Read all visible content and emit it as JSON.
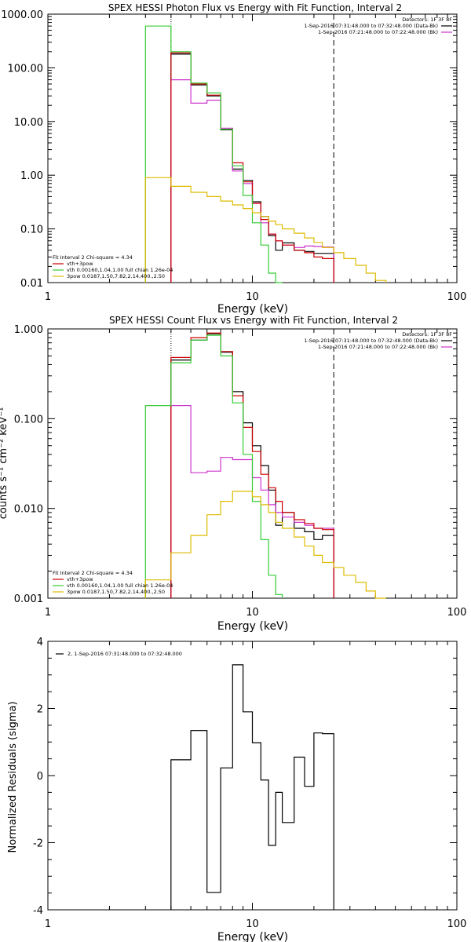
{
  "chart_data": [
    {
      "type": "line",
      "step": true,
      "title": "SPEX HESSI Photon Flux vs Energy with Fit Function, Interval 2",
      "xlabel": "Energy (keV)",
      "ylabel": "",
      "xscale": "log",
      "yscale": "log",
      "xlim": [
        1,
        100
      ],
      "ylim": [
        0.01,
        1000
      ],
      "xticks": [
        "1",
        "10",
        "100"
      ],
      "yticks": [
        "0.01",
        "0.10",
        "1.00",
        "10.00",
        "100.00",
        "1000.00"
      ],
      "vlines": [
        {
          "x": 4.0,
          "style": "dotted"
        },
        {
          "x": 25.0,
          "style": "dashed"
        }
      ],
      "detectors_label": "Detectors: 1F 3F 8F",
      "legend_top_right": [
        {
          "text": "1-Sep-2016 07:31:48.000 to 07:32:48.000 (Data-Bk)",
          "color": "#000000"
        },
        {
          "text": "1-Sep-2016 07:21:48.000 to 07:22:48.000 (Bk)",
          "color": "#cc33cc"
        }
      ],
      "legend_bottom_left": [
        {
          "text": "Fit Interval 2   Chi-square = 4.34",
          "color": null
        },
        {
          "text": "vth+3pow",
          "color": "#cc0000"
        },
        {
          "text": "vth 0.00160,1.04,1.00  full chian 1.26e-04",
          "color": "#33cc33"
        },
        {
          "text": "3pow 0.0187,1.50,7.82,2.14,400.,2.50",
          "color": "#ddbb00"
        }
      ],
      "edges": [
        3.0,
        4.0,
        5.0,
        6.0,
        7.0,
        8.0,
        9.0,
        10.0,
        11.0,
        12.0,
        13.0,
        14.0,
        16.0,
        18.0,
        20.0,
        22.0,
        25.0,
        28.0,
        32.0,
        36.0,
        40.0,
        45.0
      ],
      "series": [
        {
          "name": "Data-Bk",
          "color": "#000000",
          "start": 1,
          "values": [
            180,
            48,
            30,
            7,
            1.3,
            0.8,
            0.32,
            0.17,
            0.075,
            0.04,
            0.055,
            0.04,
            0.038,
            0.035,
            0.035
          ]
        },
        {
          "name": "Bk",
          "color": "#cc33cc",
          "start": 1,
          "values": [
            60,
            22,
            25,
            7.5,
            1.2,
            0.7,
            0.3,
            0.13,
            0.08,
            0.06,
            0.05,
            0.045,
            0.048,
            0.047,
            0.046
          ]
        },
        {
          "name": "vth+3pow",
          "color": "#cc0000",
          "start": 1,
          "values": [
            190,
            50,
            31,
            7.2,
            1.7,
            0.75,
            0.3,
            0.15,
            0.08,
            0.06,
            0.05,
            0.04,
            0.036,
            0.03,
            0.028
          ]
        },
        {
          "name": "vth",
          "color": "#33cc33",
          "start": 0,
          "values": [
            600,
            200,
            52,
            34,
            7.2,
            1.5,
            0.42,
            0.13,
            0.05,
            0.015,
            0.01
          ]
        },
        {
          "name": "3pow",
          "color": "#ddbb00",
          "start": 0,
          "values": [
            0.9,
            0.62,
            0.48,
            0.4,
            0.33,
            0.28,
            0.24,
            0.2,
            0.17,
            0.14,
            0.12,
            0.1,
            0.083,
            0.068,
            0.056,
            0.045,
            0.036,
            0.028,
            0.021,
            0.015,
            0.011
          ]
        }
      ]
    },
    {
      "type": "line",
      "step": true,
      "title": "SPEX HESSI Count Flux vs Energy with Fit Function, Interval 2",
      "xlabel": "Energy (keV)",
      "ylabel": "counts s⁻¹ cm⁻² keV⁻¹",
      "xscale": "log",
      "yscale": "log",
      "xlim": [
        1,
        100
      ],
      "ylim": [
        0.001,
        1
      ],
      "xticks": [
        "1",
        "10",
        "100"
      ],
      "yticks": [
        "0.001",
        "0.010",
        "0.100",
        "1.000"
      ],
      "vlines": [
        {
          "x": 4.0,
          "style": "dotted"
        },
        {
          "x": 25.0,
          "style": "dashed"
        }
      ],
      "detectors_label": "Detectors: 1F 3F 8F",
      "legend_top_right": [
        {
          "text": "1-Sep-2016 07:31:48.000 to 07:32:48.000 (Data-Bk)",
          "color": "#000000"
        },
        {
          "text": "1-Sep-2016 07:21:48.000 to 07:22:48.000 (Bk)",
          "color": "#cc33cc"
        }
      ],
      "legend_bottom_left": [
        {
          "text": "Fit Interval 2   Chi-square = 4.34",
          "color": null
        },
        {
          "text": "vth+3pow",
          "color": "#cc0000"
        },
        {
          "text": "vth 0.00160,1.04,1.00  full chian 1.26e-04",
          "color": "#33cc33"
        },
        {
          "text": "3pow 0.0187,1.50,7.82,2.14,400.,2.50",
          "color": "#ddbb00"
        }
      ],
      "edges": [
        3.0,
        4.0,
        5.0,
        6.0,
        7.0,
        8.0,
        9.0,
        10.0,
        11.0,
        12.0,
        13.0,
        14.0,
        16.0,
        18.0,
        20.0,
        22.0,
        25.0,
        28.0,
        32.0,
        36.0,
        40.0,
        45.0
      ],
      "series": [
        {
          "name": "Data-Bk",
          "color": "#000000",
          "start": 1,
          "values": [
            0.45,
            0.75,
            0.88,
            0.55,
            0.2,
            0.09,
            0.05,
            0.03,
            0.016,
            0.0065,
            0.009,
            0.006,
            0.0055,
            0.0045,
            0.005
          ]
        },
        {
          "name": "Bk",
          "color": "#cc33cc",
          "start": 1,
          "values": [
            0.14,
            0.025,
            0.026,
            0.037,
            0.035,
            0.035,
            0.022,
            0.016,
            0.011,
            0.009,
            0.008,
            0.007,
            0.0065,
            0.006,
            0.006
          ]
        },
        {
          "name": "vth+3pow",
          "color": "#cc0000",
          "start": 1,
          "values": [
            0.48,
            0.8,
            0.9,
            0.56,
            0.18,
            0.08,
            0.043,
            0.024,
            0.017,
            0.012,
            0.009,
            0.0075,
            0.0068,
            0.006,
            0.0058
          ]
        },
        {
          "name": "vth",
          "color": "#33cc33",
          "start": 0,
          "values": [
            0.14,
            0.42,
            0.75,
            0.85,
            0.5,
            0.15,
            0.04,
            0.012,
            0.0045,
            0.0018,
            0.0011
          ]
        },
        {
          "name": "3pow",
          "color": "#ddbb00",
          "start": 0,
          "values": [
            0.0016,
            0.0032,
            0.005,
            0.0085,
            0.012,
            0.0155,
            0.0155,
            0.0135,
            0.011,
            0.009,
            0.007,
            0.006,
            0.0048,
            0.0038,
            0.003,
            0.0025,
            0.0022,
            0.0018,
            0.0015,
            0.0012,
            0.001
          ]
        }
      ]
    },
    {
      "type": "line",
      "step": true,
      "title": "",
      "xlabel": "Energy (keV)",
      "ylabel": "Normalized Residuals (sigma)",
      "xscale": "log",
      "yscale": "linear",
      "xlim": [
        1,
        100
      ],
      "ylim": [
        -4,
        4
      ],
      "xticks": [
        "1",
        "10",
        "100"
      ],
      "yticks": [
        "-4",
        "-2",
        "0",
        "2",
        "4"
      ],
      "legend": [
        {
          "text": "2, 1-Sep-2016 07:31:48.000 to 07:32:48.000",
          "color": "#000000"
        }
      ],
      "edges": [
        4.0,
        5.0,
        6.0,
        7.0,
        8.0,
        9.0,
        10.0,
        11.0,
        12.0,
        13.0,
        14.0,
        16.0,
        18.0,
        20.0,
        22.0,
        25.0
      ],
      "series": [
        {
          "name": "",
          "color": "#000000",
          "start": 0,
          "values": [
            0.47,
            1.34,
            -3.48,
            0.23,
            3.3,
            1.9,
            0.98,
            -0.13,
            -2.08,
            -0.5,
            -1.4,
            0.55,
            -0.32,
            1.27,
            1.25
          ]
        }
      ]
    }
  ]
}
